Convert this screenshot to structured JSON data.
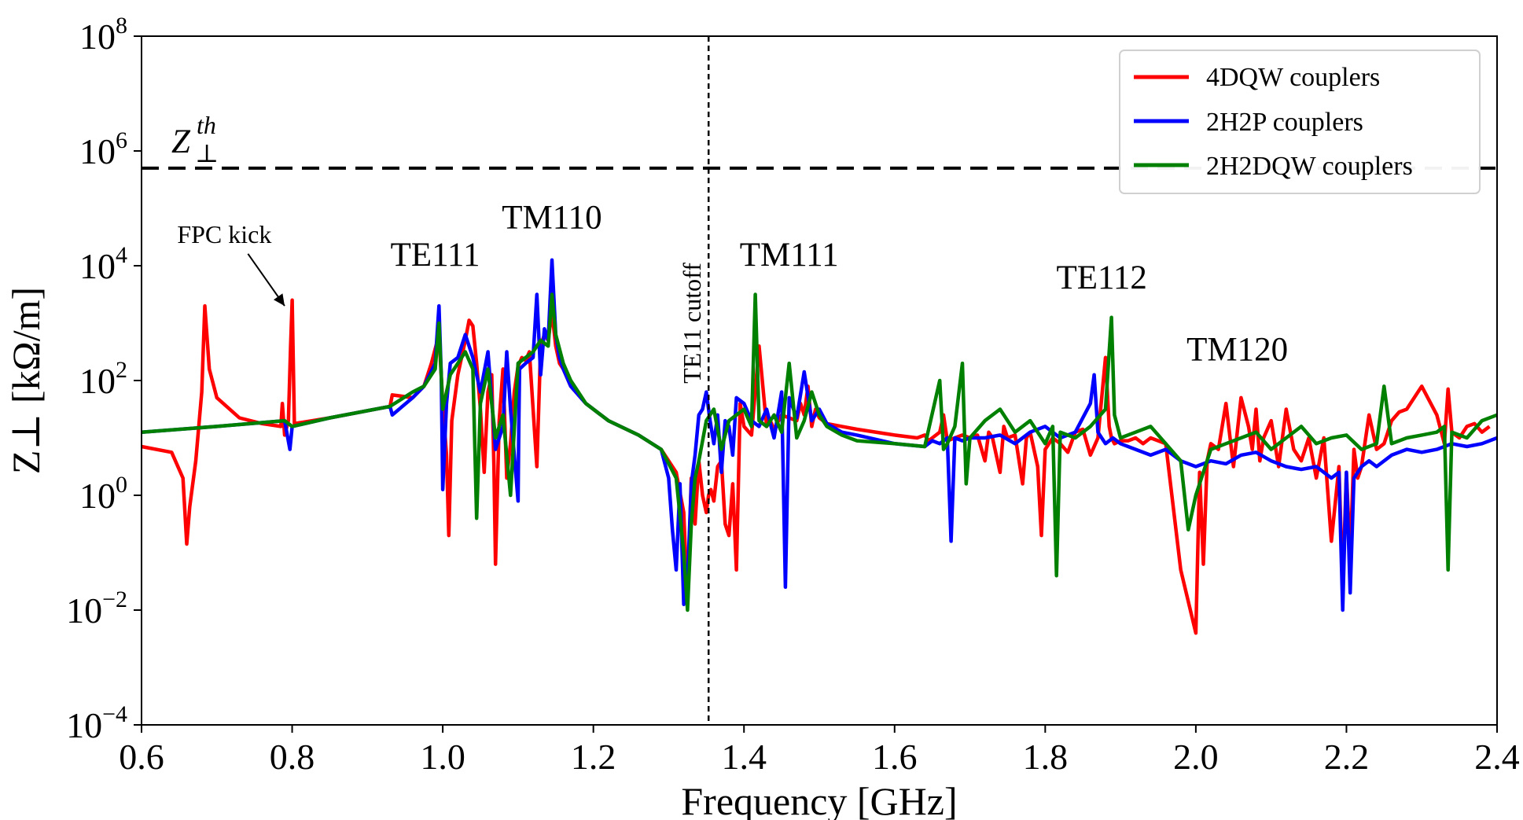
{
  "chart_data": {
    "type": "line",
    "title": "",
    "xlabel": "Frequency [GHz]",
    "ylabel": "Z⊥ [kΩ/m]",
    "xlim": [
      0.6,
      2.4
    ],
    "ylim_log10": [
      -4,
      8
    ],
    "y_scale": "log",
    "grid": false,
    "legend_position": "top-right",
    "x_ticks": [
      0.6,
      0.8,
      1.0,
      1.2,
      1.4,
      1.6,
      1.8,
      2.0,
      2.2,
      2.4
    ],
    "x_tick_labels": [
      "0.6",
      "0.8",
      "1.0",
      "1.2",
      "1.4",
      "1.6",
      "1.8",
      "2.0",
      "2.2",
      "2.4"
    ],
    "y_ticks": [
      {
        "base": "10",
        "exp": "−4",
        "log10": -4
      },
      {
        "base": "10",
        "exp": "−2",
        "log10": -2
      },
      {
        "base": "10",
        "exp": "0",
        "log10": 0
      },
      {
        "base": "10",
        "exp": "2",
        "log10": 2
      },
      {
        "base": "10",
        "exp": "4",
        "log10": 4
      },
      {
        "base": "10",
        "exp": "6",
        "log10": 6
      },
      {
        "base": "10",
        "exp": "8",
        "log10": 8
      }
    ],
    "threshold": {
      "label_main": "Z",
      "label_sup": "th",
      "label_sub": "⊥",
      "log10": 5.7
    },
    "cutoff": {
      "label": "TE11 cutoff",
      "x": 1.353
    },
    "annotations": [
      {
        "text": "FPC kick",
        "x": 0.71,
        "log10": 4.4,
        "arrow_to": [
          0.79,
          3.3
        ]
      },
      {
        "text": "TE111",
        "x": 0.99,
        "log10": 4.0
      },
      {
        "text": "TM110",
        "x": 1.145,
        "log10": 4.65
      },
      {
        "text": "TM111",
        "x": 1.46,
        "log10": 4.0
      },
      {
        "text": "TE112",
        "x": 1.875,
        "log10": 3.6
      },
      {
        "text": "TM120",
        "x": 2.055,
        "log10": 2.35
      }
    ],
    "series": [
      {
        "name": "4DQW couplers",
        "color": "#ff0000",
        "x": [
          0.6,
          0.64,
          0.655,
          0.66,
          0.664,
          0.672,
          0.68,
          0.684,
          0.69,
          0.7,
          0.73,
          0.76,
          0.785,
          0.787,
          0.79,
          0.795,
          0.798,
          0.8,
          0.803,
          0.85,
          0.93,
          0.933,
          0.96,
          0.975,
          0.985,
          0.995,
          1.0,
          1.005,
          1.008,
          1.012,
          1.02,
          1.03,
          1.035,
          1.04,
          1.045,
          1.05,
          1.055,
          1.06,
          1.065,
          1.068,
          1.07,
          1.075,
          1.08,
          1.085,
          1.09,
          1.095,
          1.1,
          1.105,
          1.11,
          1.115,
          1.12,
          1.125,
          1.13,
          1.135,
          1.14,
          1.145,
          1.15,
          1.155,
          1.16,
          1.17,
          1.19,
          1.22,
          1.26,
          1.29,
          1.31,
          1.32,
          1.325,
          1.33,
          1.335,
          1.34,
          1.345,
          1.35,
          1.353,
          1.356,
          1.36,
          1.365,
          1.37,
          1.375,
          1.38,
          1.385,
          1.39,
          1.395,
          1.4,
          1.41,
          1.42,
          1.43,
          1.435,
          1.44,
          1.45,
          1.46,
          1.47,
          1.475,
          1.48,
          1.485,
          1.49,
          1.495,
          1.5,
          1.51,
          1.53,
          1.55,
          1.6,
          1.63,
          1.64,
          1.645,
          1.65,
          1.66,
          1.665,
          1.67,
          1.68,
          1.69,
          1.7,
          1.71,
          1.72,
          1.725,
          1.73,
          1.74,
          1.745,
          1.75,
          1.76,
          1.77,
          1.775,
          1.78,
          1.79,
          1.795,
          1.8,
          1.81,
          1.82,
          1.83,
          1.84,
          1.85,
          1.86,
          1.87,
          1.88,
          1.885,
          1.888,
          1.892,
          1.9,
          1.91,
          1.92,
          1.93,
          1.94,
          1.95,
          1.96,
          1.98,
          2.0,
          2.005,
          2.01,
          2.015,
          2.02,
          2.03,
          2.04,
          2.05,
          2.06,
          2.07,
          2.075,
          2.08,
          2.085,
          2.09,
          2.1,
          2.11,
          2.12,
          2.13,
          2.14,
          2.15,
          2.16,
          2.17,
          2.18,
          2.19,
          2.195,
          2.2,
          2.205,
          2.21,
          2.215,
          2.22,
          2.23,
          2.24,
          2.25,
          2.26,
          2.27,
          2.28,
          2.3,
          2.32,
          2.33,
          2.335,
          2.34,
          2.35,
          2.36,
          2.37,
          2.38,
          2.39,
          2.4
        ],
        "log10": [
          0.85,
          0.75,
          0.3,
          -0.85,
          -0.2,
          0.6,
          1.8,
          3.3,
          2.2,
          1.7,
          1.35,
          1.25,
          1.2,
          1.6,
          1.05,
          1.3,
          2.6,
          3.4,
          1.25,
          1.35,
          1.55,
          1.75,
          1.7,
          1.9,
          2.3,
          2.8,
          1.6,
          0.7,
          -0.7,
          1.3,
          2.1,
          2.7,
          3.05,
          2.95,
          2.3,
          1.5,
          0.4,
          1.8,
          2.1,
          0.5,
          -1.2,
          1.3,
          2.2,
          0.3,
          0.9,
          1.8,
          2.25,
          2.4,
          2.35,
          2.5,
          1.5,
          0.5,
          2.6,
          2.8,
          2.7,
          3.2,
          2.6,
          2.3,
          2.2,
          1.9,
          1.6,
          1.3,
          1.05,
          0.8,
          0.4,
          -0.3,
          -1.9,
          0.3,
          -0.5,
          0.6,
          0.0,
          -0.3,
          0.0,
          0.1,
          -0.1,
          0.5,
          0.6,
          -0.5,
          -0.7,
          0.2,
          -1.3,
          1.6,
          1.2,
          1.05,
          2.6,
          1.2,
          1.3,
          1.15,
          1.4,
          1.35,
          1.3,
          1.6,
          1.4,
          1.9,
          1.2,
          1.5,
          1.35,
          1.25,
          1.2,
          1.15,
          1.05,
          1.0,
          1.05,
          0.95,
          1.0,
          1.1,
          1.4,
          0.95,
          1.0,
          1.05,
          1.0,
          1.05,
          0.6,
          1.1,
          1.0,
          0.4,
          1.2,
          1.0,
          1.05,
          0.2,
          1.0,
          1.1,
          0.5,
          -0.7,
          0.8,
          1.0,
          0.9,
          0.75,
          1.1,
          1.15,
          0.7,
          1.0,
          2.4,
          1.2,
          1.0,
          0.9,
          0.95,
          0.95,
          1.0,
          0.9,
          1.0,
          0.95,
          0.9,
          -1.3,
          -2.4,
          0.4,
          -1.2,
          0.6,
          0.9,
          0.8,
          1.6,
          0.5,
          1.7,
          1.2,
          0.8,
          1.5,
          0.6,
          1.0,
          1.3,
          0.5,
          1.5,
          0.8,
          0.6,
          1.0,
          0.3,
          1.0,
          -0.8,
          0.5,
          -1.6,
          0.4,
          -1.1,
          0.8,
          0.3,
          0.5,
          1.4,
          0.8,
          0.9,
          1.3,
          1.45,
          1.5,
          1.9,
          1.4,
          0.9,
          1.85,
          1.1,
          1.0,
          1.2,
          1.25,
          1.1,
          1.2
        ]
      },
      {
        "name": "2H2P couplers",
        "color": "#0000ff",
        "x": [
          0.6,
          0.7,
          0.79,
          0.797,
          0.8,
          0.85,
          0.93,
          0.933,
          0.96,
          0.975,
          0.99,
          0.995,
          0.998,
          1.0,
          1.005,
          1.01,
          1.02,
          1.03,
          1.04,
          1.05,
          1.06,
          1.07,
          1.08,
          1.085,
          1.09,
          1.1,
          1.101,
          1.102,
          1.11,
          1.12,
          1.125,
          1.13,
          1.135,
          1.14,
          1.145,
          1.15,
          1.155,
          1.16,
          1.17,
          1.19,
          1.22,
          1.26,
          1.29,
          1.3,
          1.305,
          1.31,
          1.315,
          1.32,
          1.325,
          1.33,
          1.335,
          1.34,
          1.345,
          1.35,
          1.355,
          1.36,
          1.365,
          1.37,
          1.375,
          1.38,
          1.385,
          1.39,
          1.4,
          1.41,
          1.42,
          1.43,
          1.44,
          1.45,
          1.455,
          1.46,
          1.47,
          1.48,
          1.49,
          1.5,
          1.51,
          1.53,
          1.55,
          1.6,
          1.64,
          1.65,
          1.66,
          1.67,
          1.675,
          1.68,
          1.69,
          1.7,
          1.72,
          1.74,
          1.76,
          1.78,
          1.8,
          1.82,
          1.84,
          1.86,
          1.865,
          1.87,
          1.88,
          1.89,
          1.9,
          1.92,
          1.94,
          1.96,
          1.98,
          2.0,
          2.02,
          2.04,
          2.06,
          2.08,
          2.1,
          2.12,
          2.14,
          2.16,
          2.18,
          2.19,
          2.195,
          2.2,
          2.205,
          2.21,
          2.22,
          2.23,
          2.24,
          2.26,
          2.28,
          2.3,
          2.32,
          2.34,
          2.36,
          2.38,
          2.4
        ],
        "log10": [
          1.1,
          1.2,
          1.3,
          0.8,
          1.2,
          1.35,
          1.55,
          1.4,
          1.7,
          1.9,
          2.3,
          3.3,
          2.1,
          0.1,
          1.6,
          2.3,
          2.4,
          2.8,
          2.4,
          1.8,
          2.5,
          0.8,
          1.2,
          2.5,
          1.5,
          -0.1,
          1.2,
          2.2,
          2.3,
          2.4,
          3.5,
          2.1,
          2.9,
          2.7,
          4.1,
          2.8,
          2.4,
          2.2,
          1.9,
          1.6,
          1.3,
          1.05,
          0.8,
          0.3,
          -0.6,
          -1.3,
          0.2,
          -1.9,
          -1.5,
          0.2,
          0.7,
          1.4,
          1.5,
          1.8,
          1.3,
          0.9,
          1.4,
          0.4,
          1.3,
          1.2,
          0.7,
          1.7,
          1.6,
          1.3,
          1.2,
          1.5,
          1.0,
          1.8,
          -1.6,
          1.7,
          1.35,
          2.15,
          1.3,
          1.5,
          1.25,
          1.1,
          1.05,
          0.9,
          0.85,
          0.95,
          0.9,
          1.0,
          -0.8,
          1.0,
          0.95,
          1.0,
          1.0,
          1.05,
          0.9,
          1.1,
          1.2,
          1.0,
          1.1,
          1.6,
          2.1,
          1.1,
          0.9,
          1.0,
          0.9,
          0.8,
          0.7,
          0.8,
          0.6,
          0.5,
          0.6,
          0.55,
          0.7,
          0.75,
          0.6,
          0.5,
          0.45,
          0.5,
          0.3,
          0.4,
          -2.0,
          0.4,
          -1.7,
          0.3,
          0.5,
          0.6,
          0.5,
          0.7,
          0.8,
          0.75,
          0.8,
          0.9,
          0.85,
          0.9,
          1.0
        ]
      },
      {
        "name": "2H2DQW couplers",
        "color": "#008000",
        "x": [
          0.6,
          0.7,
          0.79,
          0.795,
          0.8,
          0.85,
          0.93,
          0.96,
          0.975,
          0.99,
          0.995,
          1.0,
          1.01,
          1.02,
          1.03,
          1.04,
          1.045,
          1.05,
          1.06,
          1.07,
          1.08,
          1.09,
          1.1,
          1.11,
          1.12,
          1.13,
          1.14,
          1.145,
          1.15,
          1.16,
          1.17,
          1.19,
          1.22,
          1.26,
          1.29,
          1.31,
          1.32,
          1.325,
          1.33,
          1.335,
          1.34,
          1.35,
          1.36,
          1.37,
          1.38,
          1.39,
          1.4,
          1.41,
          1.415,
          1.42,
          1.43,
          1.44,
          1.45,
          1.46,
          1.47,
          1.48,
          1.49,
          1.5,
          1.51,
          1.53,
          1.55,
          1.6,
          1.64,
          1.66,
          1.665,
          1.67,
          1.68,
          1.69,
          1.695,
          1.7,
          1.72,
          1.74,
          1.76,
          1.78,
          1.8,
          1.81,
          1.815,
          1.82,
          1.84,
          1.86,
          1.88,
          1.885,
          1.888,
          1.892,
          1.9,
          1.92,
          1.94,
          1.96,
          1.98,
          1.99,
          2.0,
          2.02,
          2.04,
          2.06,
          2.08,
          2.1,
          2.12,
          2.14,
          2.16,
          2.18,
          2.2,
          2.22,
          2.24,
          2.25,
          2.26,
          2.28,
          2.3,
          2.32,
          2.33,
          2.335,
          2.34,
          2.36,
          2.38,
          2.4
        ],
        "log10": [
          1.1,
          1.2,
          1.3,
          1.25,
          1.2,
          1.35,
          1.55,
          1.8,
          1.9,
          2.2,
          3.0,
          1.5,
          2.1,
          2.3,
          2.5,
          2.2,
          -0.4,
          1.6,
          2.2,
          1.0,
          1.4,
          0.0,
          2.3,
          2.4,
          2.5,
          2.7,
          2.6,
          3.5,
          2.8,
          2.3,
          2.0,
          1.6,
          1.3,
          1.05,
          0.8,
          0.3,
          -1.0,
          -2.0,
          -0.5,
          0.3,
          0.6,
          1.3,
          1.5,
          0.8,
          1.3,
          1.4,
          1.5,
          1.2,
          3.5,
          1.3,
          1.2,
          1.4,
          1.1,
          2.3,
          1.0,
          1.3,
          1.8,
          1.4,
          1.2,
          1.05,
          0.95,
          0.9,
          0.85,
          2.0,
          0.8,
          0.9,
          1.2,
          2.3,
          0.2,
          1.0,
          1.3,
          1.5,
          1.1,
          1.3,
          0.9,
          1.2,
          -1.4,
          1.1,
          1.0,
          1.2,
          1.5,
          2.5,
          3.1,
          1.4,
          1.0,
          1.1,
          1.2,
          0.9,
          0.6,
          -0.6,
          0.0,
          0.8,
          0.9,
          1.0,
          1.1,
          0.8,
          1.0,
          1.2,
          0.9,
          1.0,
          1.05,
          0.8,
          0.9,
          1.9,
          0.9,
          1.0,
          1.05,
          1.1,
          1.2,
          -1.3,
          1.1,
          1.0,
          1.3,
          1.4
        ]
      }
    ]
  }
}
